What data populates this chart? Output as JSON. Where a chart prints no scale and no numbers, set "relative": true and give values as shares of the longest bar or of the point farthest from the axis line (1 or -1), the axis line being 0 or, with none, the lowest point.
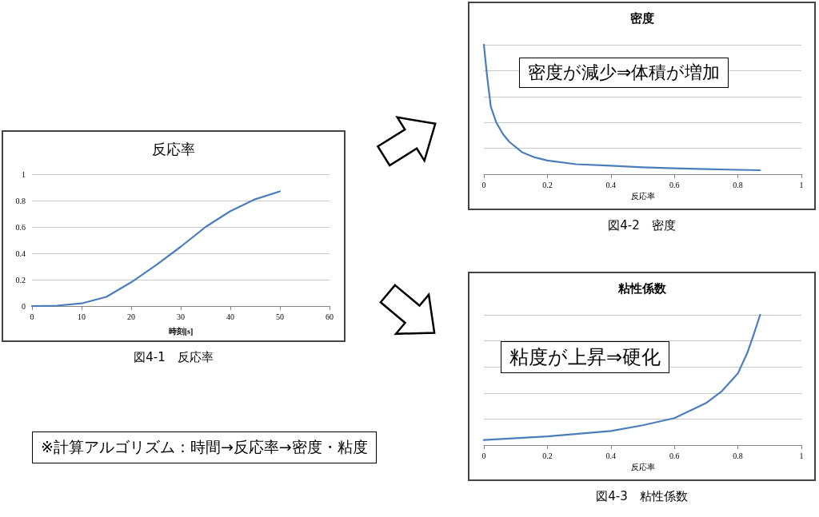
{
  "chart_data": [
    {
      "type": "line",
      "title": "反応率",
      "xlabel": "時刻[s]",
      "x": [
        0,
        5,
        10,
        15,
        20,
        25,
        30,
        35,
        40,
        45,
        50
      ],
      "series": [
        {
          "color": "#4a7ebb",
          "values": [
            0,
            0.003,
            0.02,
            0.07,
            0.18,
            0.31,
            0.45,
            0.6,
            0.72,
            0.81,
            0.87
          ]
        }
      ],
      "xlim": [
        0,
        60
      ],
      "xticks": [
        0,
        10,
        20,
        30,
        40,
        50,
        60
      ],
      "ylim": [
        0,
        1
      ],
      "yticks": [
        0,
        0.2,
        0.4,
        0.6,
        0.8,
        1
      ],
      "grid": "y",
      "marker": "none",
      "line_style": "solid",
      "annotations": [
        "図4-1　反応率",
        "※計算アルゴリズム：時間→反応率→密度・粘度"
      ]
    },
    {
      "type": "line",
      "title": "密度",
      "xlabel": "反応率",
      "relative": true,
      "x": [
        0,
        0.01,
        0.022,
        0.039,
        0.06,
        0.08,
        0.12,
        0.16,
        0.2,
        0.29,
        0.4,
        0.5,
        0.6,
        0.7,
        0.8,
        0.87
      ],
      "series": [
        {
          "color": "#4a7ebb",
          "values": [
            1,
            0.76,
            0.52,
            0.4,
            0.31,
            0.25,
            0.17,
            0.13,
            0.106,
            0.077,
            0.065,
            0.053,
            0.046,
            0.039,
            0.034,
            0.031
          ]
        }
      ],
      "xlim": [
        0,
        1
      ],
      "xticks": [
        0,
        0.2,
        0.4,
        0.6,
        0.8,
        1
      ],
      "grid": "y",
      "marker": "none",
      "line_style": "solid",
      "annotations": [
        "密度が減少⇒体積が増加",
        "図4-2　密度"
      ]
    },
    {
      "type": "line",
      "title": "粘性係数",
      "xlabel": "反応率",
      "relative": true,
      "x": [
        0,
        0.2,
        0.4,
        0.5,
        0.6,
        0.7,
        0.75,
        0.8,
        0.83,
        0.85,
        0.87
      ],
      "series": [
        {
          "color": "#4a7ebb",
          "values": [
            0.039,
            0.067,
            0.108,
            0.152,
            0.207,
            0.323,
            0.415,
            0.55,
            0.71,
            0.85,
            1
          ]
        }
      ],
      "xlim": [
        0,
        1
      ],
      "xticks": [
        0,
        0.2,
        0.4,
        0.6,
        0.8,
        1
      ],
      "grid": "y",
      "marker": "none",
      "line_style": "solid",
      "annotations": [
        "粘度が上昇⇒硬化",
        "図4-3　粘性係数"
      ]
    }
  ]
}
